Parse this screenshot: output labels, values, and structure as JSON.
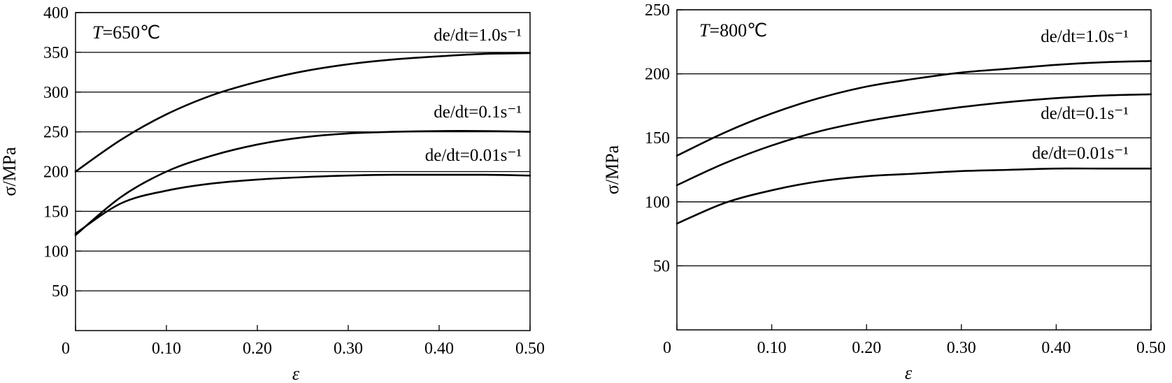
{
  "chart_data": [
    {
      "type": "line",
      "annotation": {
        "symbol": "T",
        "text": "=650℃"
      },
      "xlabel": "ε",
      "ylabel": "σ/MPa",
      "xlim": [
        0,
        0.5
      ],
      "ylim": [
        0,
        400
      ],
      "xticks": [
        "0",
        "0.10",
        "0.20",
        "0.30",
        "0.40",
        "0.50"
      ],
      "yticks": [
        "50",
        "100",
        "150",
        "200",
        "250",
        "300",
        "350",
        "400"
      ],
      "grid": "horizontal",
      "series": [
        {
          "name": "de/dt=1.0s⁻¹",
          "x": [
            0,
            0.05,
            0.1,
            0.15,
            0.2,
            0.25,
            0.3,
            0.35,
            0.4,
            0.45,
            0.5
          ],
          "y": [
            200,
            240,
            272,
            296,
            313,
            326,
            335,
            341,
            345,
            348,
            349
          ]
        },
        {
          "name": "de/dt=0.1s⁻¹",
          "x": [
            0,
            0.05,
            0.1,
            0.15,
            0.2,
            0.25,
            0.3,
            0.35,
            0.4,
            0.45,
            0.5
          ],
          "y": [
            120,
            168,
            200,
            220,
            234,
            243,
            248,
            250,
            251,
            251,
            250
          ]
        },
        {
          "name": "de/dt=0.01s⁻¹",
          "x": [
            0,
            0.05,
            0.1,
            0.15,
            0.2,
            0.25,
            0.3,
            0.35,
            0.4,
            0.45,
            0.5
          ],
          "y": [
            122,
            160,
            176,
            185,
            190,
            193,
            195,
            196,
            196,
            196,
            195
          ]
        }
      ]
    },
    {
      "type": "line",
      "annotation": {
        "symbol": "T",
        "text": "=800℃"
      },
      "xlabel": "ε",
      "ylabel": "σ/MPa",
      "xlim": [
        0,
        0.5
      ],
      "ylim": [
        0,
        250
      ],
      "xticks": [
        "0",
        "0.10",
        "0.20",
        "0.30",
        "0.40",
        "0.50"
      ],
      "yticks": [
        "50",
        "100",
        "150",
        "200",
        "250"
      ],
      "grid": "horizontal",
      "series": [
        {
          "name": "de/dt=1.0s⁻¹",
          "x": [
            0,
            0.05,
            0.1,
            0.15,
            0.2,
            0.25,
            0.3,
            0.35,
            0.4,
            0.45,
            0.5
          ],
          "y": [
            136,
            154,
            169,
            181,
            190,
            196,
            201,
            204,
            207,
            209,
            210
          ]
        },
        {
          "name": "de/dt=0.1s⁻¹",
          "x": [
            0,
            0.05,
            0.1,
            0.15,
            0.2,
            0.25,
            0.3,
            0.35,
            0.4,
            0.45,
            0.5
          ],
          "y": [
            113,
            130,
            144,
            155,
            163,
            169,
            174,
            178,
            181,
            183,
            184
          ]
        },
        {
          "name": "de/dt=0.01s⁻¹",
          "x": [
            0,
            0.05,
            0.1,
            0.15,
            0.2,
            0.25,
            0.3,
            0.35,
            0.4,
            0.45,
            0.5
          ],
          "y": [
            83,
            99,
            109,
            116,
            120,
            122,
            124,
            125,
            126,
            126,
            126
          ]
        }
      ]
    }
  ]
}
